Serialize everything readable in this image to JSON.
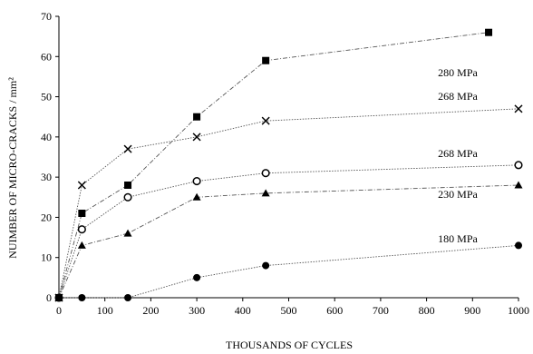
{
  "chart_data": {
    "type": "line",
    "xlabel": "THOUSANDS OF CYCLES",
    "ylabel": "NUIMBER OF MICRO-CRACKS / mm²",
    "xlim": [
      0,
      1000
    ],
    "ylim": [
      0,
      70
    ],
    "xticks": [
      0,
      100,
      200,
      300,
      400,
      500,
      600,
      700,
      800,
      900,
      1000
    ],
    "yticks": [
      0,
      10,
      20,
      30,
      40,
      50,
      60,
      70
    ],
    "grid": false,
    "series": [
      {
        "name": "280 MPa",
        "marker": "square-filled",
        "line": "dash-dot",
        "x": [
          0,
          50,
          150,
          300,
          450,
          935
        ],
        "y": [
          0,
          21,
          28,
          45,
          59,
          66
        ]
      },
      {
        "name": "268 MPa",
        "marker": "cross",
        "line": "dotted",
        "x": [
          0,
          50,
          150,
          300,
          450,
          1000
        ],
        "y": [
          0,
          28,
          37,
          40,
          44,
          47
        ]
      },
      {
        "name": "268 MPa",
        "marker": "circle-open",
        "line": "dotted",
        "x": [
          0,
          50,
          150,
          300,
          450,
          1000
        ],
        "y": [
          0,
          17,
          25,
          29,
          31,
          33
        ]
      },
      {
        "name": "230 MPa",
        "marker": "triangle-filled",
        "line": "dash-dot",
        "x": [
          0,
          50,
          150,
          300,
          450,
          1000
        ],
        "y": [
          0,
          13,
          16,
          25,
          26,
          28
        ]
      },
      {
        "name": "180 MPa",
        "marker": "circle-filled",
        "line": "dotted",
        "x": [
          0,
          50,
          150,
          300,
          450,
          1000
        ],
        "y": [
          0,
          0,
          0,
          5,
          8,
          13
        ]
      }
    ]
  }
}
